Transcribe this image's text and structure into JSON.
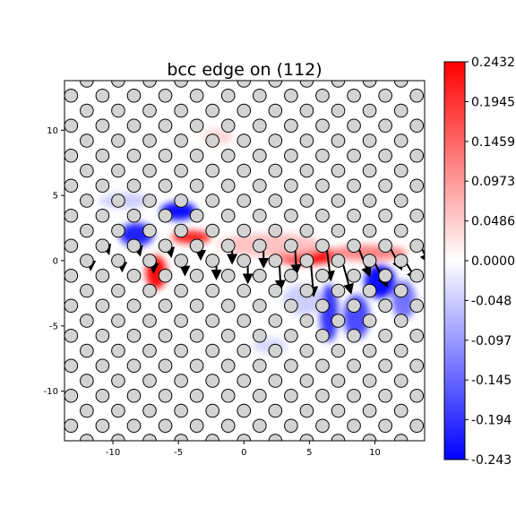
{
  "chart_data": {
    "type": "scatter",
    "title": "bcc edge on (112)",
    "xlabel": "",
    "ylabel": "",
    "xlim": [
      -13.7,
      13.8
    ],
    "ylim": [
      -13.8,
      13.8
    ],
    "x_ticks": [
      -10,
      -5,
      0,
      5,
      10
    ],
    "y_ticks": [
      -10,
      -5,
      0,
      5,
      10
    ],
    "lattice": {
      "row_spacing": 1.15,
      "x_spacing": 2.4,
      "row_offset_step": 1.2,
      "atom_radius": 0.5,
      "atom_color": "#d3d3d3"
    },
    "colorbar": {
      "colormap": "bwr",
      "min": -0.2432,
      "max": 0.2432,
      "tick_values": [
        0.2432,
        0.1945,
        0.1459,
        0.0973,
        0.0486,
        0.0,
        -0.0486,
        -0.0973,
        -0.1459,
        -0.1945,
        -0.2432
      ],
      "tick_labels": [
        "0.2432",
        "0.1945",
        "0.1459",
        "0.0973",
        "0.0486",
        "0.0000",
        "-0.048",
        "-0.097",
        "-0.145",
        "-0.194",
        "-0.243"
      ]
    },
    "field_blobs": [
      {
        "x": -5.0,
        "y": 3.8,
        "sx": 1.4,
        "sy": 0.7,
        "value": -0.24
      },
      {
        "x": -8.2,
        "y": 2.0,
        "sx": 1.3,
        "sy": 0.9,
        "value": -0.22
      },
      {
        "x": -6.7,
        "y": -0.9,
        "sx": 0.8,
        "sy": 1.3,
        "value": 0.24
      },
      {
        "x": -4.0,
        "y": 1.8,
        "sx": 1.5,
        "sy": 0.5,
        "value": 0.22
      },
      {
        "x": 4.8,
        "y": 0.4,
        "sx": 2.6,
        "sy": 0.7,
        "value": 0.24
      },
      {
        "x": 9.5,
        "y": 0.6,
        "sx": 3.0,
        "sy": 0.6,
        "value": 0.12
      },
      {
        "x": 2.0,
        "y": 1.2,
        "sx": 4.0,
        "sy": 0.9,
        "value": 0.06
      },
      {
        "x": 10.4,
        "y": -1.6,
        "sx": 1.2,
        "sy": 1.3,
        "value": -0.24
      },
      {
        "x": 6.5,
        "y": -4.0,
        "sx": 0.7,
        "sy": 2.2,
        "value": -0.2
      },
      {
        "x": 8.6,
        "y": -4.3,
        "sx": 1.0,
        "sy": 1.7,
        "value": -0.18
      },
      {
        "x": 12.2,
        "y": -3.0,
        "sx": 0.9,
        "sy": 1.5,
        "value": -0.14
      },
      {
        "x": 4.5,
        "y": -3.0,
        "sx": 1.5,
        "sy": 1.2,
        "value": -0.05
      },
      {
        "x": -9.0,
        "y": 4.6,
        "sx": 2.0,
        "sy": 0.6,
        "value": -0.05
      },
      {
        "x": -2.0,
        "y": 9.5,
        "sx": 1.2,
        "sy": 0.6,
        "value": 0.04
      },
      {
        "x": 2.0,
        "y": -6.5,
        "sx": 1.3,
        "sy": 0.6,
        "value": -0.04
      }
    ],
    "displacement_arrows": [
      {
        "x": -10.5,
        "y": 1.1,
        "dx": 0.1,
        "dy": -0.3
      },
      {
        "x": -8.1,
        "y": 1.1,
        "dx": 0.1,
        "dy": -0.4
      },
      {
        "x": -5.7,
        "y": 1.1,
        "dx": 0.1,
        "dy": -0.5
      },
      {
        "x": -3.3,
        "y": 1.1,
        "dx": 0.0,
        "dy": -0.7
      },
      {
        "x": -0.9,
        "y": 1.1,
        "dx": 0.0,
        "dy": -1.0
      },
      {
        "x": 1.5,
        "y": 1.1,
        "dx": 0.0,
        "dy": -1.3
      },
      {
        "x": 3.9,
        "y": 1.1,
        "dx": 0.1,
        "dy": -1.8
      },
      {
        "x": 6.3,
        "y": 1.1,
        "dx": 0.3,
        "dy": -2.3
      },
      {
        "x": 8.7,
        "y": 1.1,
        "dx": 0.8,
        "dy": -2.0
      },
      {
        "x": 11.1,
        "y": 1.1,
        "dx": 0.8,
        "dy": -1.5
      },
      {
        "x": 13.5,
        "y": 1.1,
        "dx": 0.5,
        "dy": -1.0
      },
      {
        "x": -11.7,
        "y": 0.0,
        "dx": 0.0,
        "dy": -0.4
      },
      {
        "x": -9.3,
        "y": 0.0,
        "dx": 0.0,
        "dy": -0.5
      },
      {
        "x": -6.9,
        "y": 0.0,
        "dx": 0.0,
        "dy": -0.6
      },
      {
        "x": -4.5,
        "y": 0.0,
        "dx": 0.0,
        "dy": -0.8
      },
      {
        "x": -2.1,
        "y": 0.0,
        "dx": 0.0,
        "dy": -1.1
      },
      {
        "x": 0.3,
        "y": 0.0,
        "dx": 0.0,
        "dy": -1.4
      },
      {
        "x": 2.7,
        "y": 0.0,
        "dx": 0.1,
        "dy": -1.9
      },
      {
        "x": 5.1,
        "y": 0.0,
        "dx": 0.2,
        "dy": -2.4
      },
      {
        "x": 7.5,
        "y": 0.0,
        "dx": 0.6,
        "dy": -2.2
      },
      {
        "x": 9.9,
        "y": 0.0,
        "dx": 0.9,
        "dy": -1.7
      },
      {
        "x": 12.3,
        "y": 0.0,
        "dx": 0.7,
        "dy": -1.2
      }
    ]
  }
}
